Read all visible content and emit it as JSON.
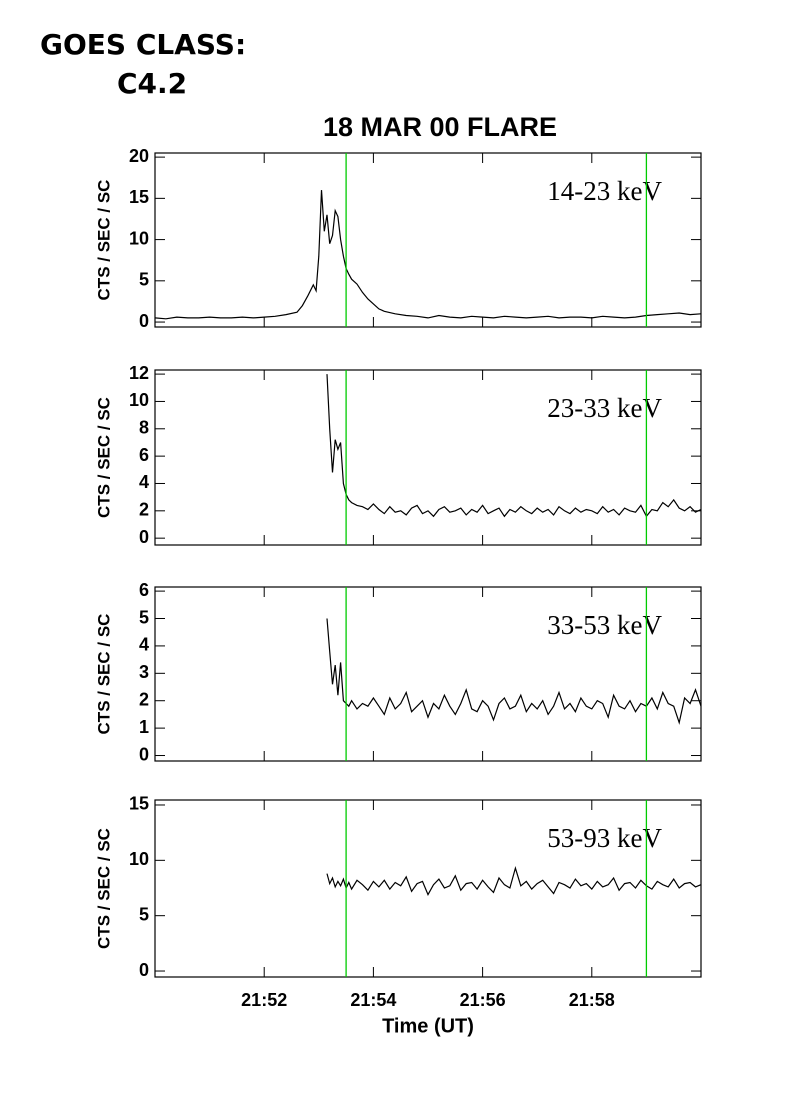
{
  "header": {
    "goes_label": "GOES CLASS:",
    "goes_class": "C4.2"
  },
  "chart_data": [
    {
      "type": "line",
      "title": "18 MAR 00 FLARE",
      "ylabel": "CTS / SEC / SC",
      "label": "14-23 keV",
      "color": "#000000",
      "xlim": [
        1310,
        1320
      ],
      "ylim": [
        -0.6,
        20.5
      ],
      "yticks": [
        0,
        5,
        10,
        15,
        20
      ],
      "vlines": [
        1313.5,
        1319
      ],
      "vline_color": "#00cc00",
      "x": [
        1310,
        1310.2,
        1310.4,
        1310.6,
        1310.8,
        1311,
        1311.2,
        1311.4,
        1311.6,
        1311.8,
        1312,
        1312.2,
        1312.4,
        1312.6,
        1312.7,
        1312.8,
        1312.9,
        1312.95,
        1313,
        1313.05,
        1313.1,
        1313.15,
        1313.2,
        1313.25,
        1313.3,
        1313.35,
        1313.4,
        1313.45,
        1313.5,
        1313.55,
        1313.6,
        1313.7,
        1313.8,
        1313.9,
        1314,
        1314.1,
        1314.2,
        1314.4,
        1314.6,
        1314.8,
        1315,
        1315.2,
        1315.4,
        1315.6,
        1315.8,
        1316,
        1316.2,
        1316.4,
        1316.6,
        1316.8,
        1317,
        1317.2,
        1317.4,
        1317.6,
        1317.8,
        1318,
        1318.2,
        1318.4,
        1318.6,
        1318.8,
        1319,
        1319.2,
        1319.4,
        1319.6,
        1319.8,
        1320
      ],
      "values": [
        0.5,
        0.4,
        0.6,
        0.5,
        0.5,
        0.6,
        0.5,
        0.5,
        0.6,
        0.5,
        0.6,
        0.7,
        0.9,
        1.2,
        2,
        3.2,
        4.5,
        3.8,
        8,
        16,
        11,
        13,
        9.5,
        10.5,
        13.5,
        12.8,
        10,
        8,
        6.5,
        5.8,
        5.2,
        4.6,
        3.6,
        2.8,
        2.2,
        1.6,
        1.3,
        1.0,
        0.8,
        0.7,
        0.5,
        0.8,
        0.6,
        0.5,
        0.7,
        0.6,
        0.5,
        0.7,
        0.6,
        0.5,
        0.6,
        0.7,
        0.5,
        0.6,
        0.6,
        0.5,
        0.7,
        0.6,
        0.5,
        0.6,
        0.8,
        0.9,
        1.0,
        1.1,
        0.9,
        1.0
      ]
    },
    {
      "type": "line",
      "ylabel": "CTS / SEC / SC",
      "label": "23-33 keV",
      "color": "#000000",
      "xlim": [
        1310,
        1320
      ],
      "ylim": [
        -0.5,
        12.3
      ],
      "yticks": [
        0,
        2,
        4,
        6,
        8,
        10,
        12
      ],
      "vlines": [
        1313.5,
        1319
      ],
      "vline_color": "#00cc00",
      "x": [
        1313.15,
        1313.2,
        1313.25,
        1313.3,
        1313.35,
        1313.4,
        1313.45,
        1313.5,
        1313.55,
        1313.6,
        1313.7,
        1313.8,
        1313.9,
        1314,
        1314.1,
        1314.2,
        1314.3,
        1314.4,
        1314.5,
        1314.6,
        1314.7,
        1314.8,
        1314.9,
        1315,
        1315.1,
        1315.2,
        1315.3,
        1315.4,
        1315.5,
        1315.6,
        1315.7,
        1315.8,
        1315.9,
        1316,
        1316.1,
        1316.2,
        1316.3,
        1316.4,
        1316.5,
        1316.6,
        1316.7,
        1316.8,
        1316.9,
        1317,
        1317.1,
        1317.2,
        1317.3,
        1317.4,
        1317.5,
        1317.6,
        1317.7,
        1317.8,
        1317.9,
        1318,
        1318.1,
        1318.2,
        1318.3,
        1318.4,
        1318.5,
        1318.6,
        1318.7,
        1318.8,
        1318.9,
        1319,
        1319.1,
        1319.2,
        1319.3,
        1319.4,
        1319.5,
        1319.6,
        1319.7,
        1319.8,
        1319.9,
        1320
      ],
      "values": [
        12,
        8,
        4.8,
        7.2,
        6.5,
        7,
        4,
        3.2,
        2.8,
        2.6,
        2.4,
        2.3,
        2.1,
        2.5,
        2.1,
        1.8,
        2.3,
        1.9,
        2.0,
        1.7,
        2.2,
        2.4,
        1.8,
        2.0,
        1.6,
        2.1,
        2.3,
        1.9,
        2.0,
        2.2,
        1.7,
        2.1,
        1.9,
        2.4,
        1.8,
        2.0,
        2.2,
        1.6,
        2.1,
        1.9,
        2.3,
        2.0,
        1.8,
        2.2,
        1.9,
        2.1,
        1.7,
        2.3,
        2.0,
        1.8,
        2.2,
        1.9,
        2.1,
        2.0,
        1.8,
        2.3,
        1.9,
        2.1,
        1.7,
        2.2,
        2.0,
        1.9,
        2.4,
        1.6,
        2.1,
        2.0,
        2.6,
        2.3,
        2.8,
        2.2,
        2.0,
        2.3,
        1.9,
        2.1
      ]
    },
    {
      "type": "line",
      "ylabel": "CTS / SEC / SC",
      "label": "33-53 keV",
      "color": "#000000",
      "xlim": [
        1310,
        1320
      ],
      "ylim": [
        -0.2,
        6.15
      ],
      "yticks": [
        0,
        1,
        2,
        3,
        4,
        5,
        6
      ],
      "vlines": [
        1313.5,
        1319
      ],
      "vline_color": "#00cc00",
      "x": [
        1313.15,
        1313.2,
        1313.25,
        1313.3,
        1313.35,
        1313.4,
        1313.45,
        1313.5,
        1313.55,
        1313.6,
        1313.7,
        1313.8,
        1313.9,
        1314,
        1314.1,
        1314.2,
        1314.3,
        1314.4,
        1314.5,
        1314.6,
        1314.7,
        1314.8,
        1314.9,
        1315,
        1315.1,
        1315.2,
        1315.3,
        1315.4,
        1315.5,
        1315.6,
        1315.7,
        1315.8,
        1315.9,
        1316,
        1316.1,
        1316.2,
        1316.3,
        1316.4,
        1316.5,
        1316.6,
        1316.7,
        1316.8,
        1316.9,
        1317,
        1317.1,
        1317.2,
        1317.3,
        1317.4,
        1317.5,
        1317.6,
        1317.7,
        1317.8,
        1317.9,
        1318,
        1318.1,
        1318.2,
        1318.3,
        1318.4,
        1318.5,
        1318.6,
        1318.7,
        1318.8,
        1318.9,
        1319,
        1319.1,
        1319.2,
        1319.3,
        1319.4,
        1319.5,
        1319.6,
        1319.7,
        1319.8,
        1319.9,
        1320
      ],
      "values": [
        5.0,
        3.8,
        2.6,
        3.3,
        2.2,
        3.4,
        2.0,
        1.9,
        1.8,
        2.0,
        1.7,
        1.9,
        1.8,
        2.1,
        1.8,
        1.5,
        2.1,
        1.7,
        1.9,
        2.3,
        1.6,
        1.8,
        2.0,
        1.4,
        1.9,
        1.7,
        2.2,
        1.8,
        1.5,
        1.9,
        2.4,
        1.7,
        1.6,
        2.0,
        1.8,
        1.3,
        1.9,
        2.1,
        1.7,
        1.8,
        2.2,
        1.6,
        1.9,
        1.7,
        2.0,
        1.5,
        1.8,
        2.3,
        1.7,
        1.9,
        1.6,
        2.1,
        1.8,
        1.7,
        2.0,
        1.9,
        1.4,
        2.2,
        1.8,
        1.7,
        2.0,
        1.6,
        1.9,
        1.8,
        2.1,
        1.7,
        2.3,
        1.9,
        1.8,
        1.2,
        2.1,
        1.9,
        2.4,
        1.8
      ]
    },
    {
      "type": "line",
      "ylabel": "CTS / SEC / SC",
      "label": "53-93 keV",
      "color": "#000000",
      "xlabel": "Time (UT)",
      "xlim": [
        1310,
        1320
      ],
      "ylim": [
        -0.54,
        15.45
      ],
      "yticks": [
        0,
        5,
        10,
        15
      ],
      "vlines": [
        1313.5,
        1319
      ],
      "vline_color": "#00cc00",
      "xticks": [
        {
          "value": 1312,
          "label": "21:52"
        },
        {
          "value": 1314,
          "label": "21:54"
        },
        {
          "value": 1316,
          "label": "21:56"
        },
        {
          "value": 1318,
          "label": "21:58"
        }
      ],
      "x": [
        1313.15,
        1313.2,
        1313.25,
        1313.3,
        1313.35,
        1313.4,
        1313.45,
        1313.5,
        1313.55,
        1313.6,
        1313.7,
        1313.8,
        1313.9,
        1314,
        1314.1,
        1314.2,
        1314.3,
        1314.4,
        1314.5,
        1314.6,
        1314.7,
        1314.8,
        1314.9,
        1315,
        1315.1,
        1315.2,
        1315.3,
        1315.4,
        1315.5,
        1315.6,
        1315.7,
        1315.8,
        1315.9,
        1316,
        1316.1,
        1316.2,
        1316.3,
        1316.4,
        1316.5,
        1316.6,
        1316.7,
        1316.8,
        1316.9,
        1317,
        1317.1,
        1317.2,
        1317.3,
        1317.4,
        1317.5,
        1317.6,
        1317.7,
        1317.8,
        1317.9,
        1318,
        1318.1,
        1318.2,
        1318.3,
        1318.4,
        1318.5,
        1318.6,
        1318.7,
        1318.8,
        1318.9,
        1319,
        1319.1,
        1319.2,
        1319.3,
        1319.4,
        1319.5,
        1319.6,
        1319.7,
        1319.8,
        1319.9,
        1320
      ],
      "values": [
        8.8,
        7.9,
        8.4,
        7.6,
        8.1,
        7.7,
        8.3,
        7.5,
        8.0,
        7.4,
        8.2,
        7.8,
        7.3,
        8.1,
        7.6,
        8.2,
        7.4,
        8.0,
        7.7,
        8.5,
        7.2,
        7.9,
        8.1,
        6.9,
        7.8,
        8.3,
        7.5,
        7.7,
        8.6,
        7.3,
        7.9,
        8.0,
        7.4,
        8.2,
        7.6,
        7.1,
        8.4,
        7.8,
        7.5,
        9.3,
        7.7,
        8.1,
        7.4,
        7.9,
        8.2,
        7.6,
        7.0,
        8.0,
        7.8,
        7.5,
        8.3,
        7.7,
        7.9,
        7.4,
        8.1,
        7.6,
        7.8,
        8.4,
        7.3,
        7.9,
        8.0,
        7.5,
        8.2,
        7.7,
        7.4,
        8.1,
        7.8,
        7.6,
        8.3,
        7.5,
        7.9,
        8.0,
        7.6,
        7.8
      ]
    }
  ]
}
